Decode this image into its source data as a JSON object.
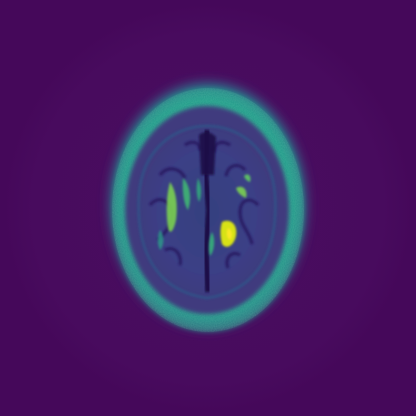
{
  "image": {
    "subject": "brain-mri-axial-slice",
    "colormap": "viridis",
    "colors": {
      "background": "#45085a",
      "fov_ring": "#4b0e61",
      "scalp_outer": "#2f6f8e",
      "scalp_mid": "#1f9d8a",
      "scalp_inner": "#39b58a",
      "skull_gap": "#3f3b7e",
      "brain_tissue": "#3b3f86",
      "sulci": "#28185f",
      "csf_bright": "#7ad151",
      "csf_peak": "#d7e219",
      "midline": "#1b0c46"
    }
  }
}
